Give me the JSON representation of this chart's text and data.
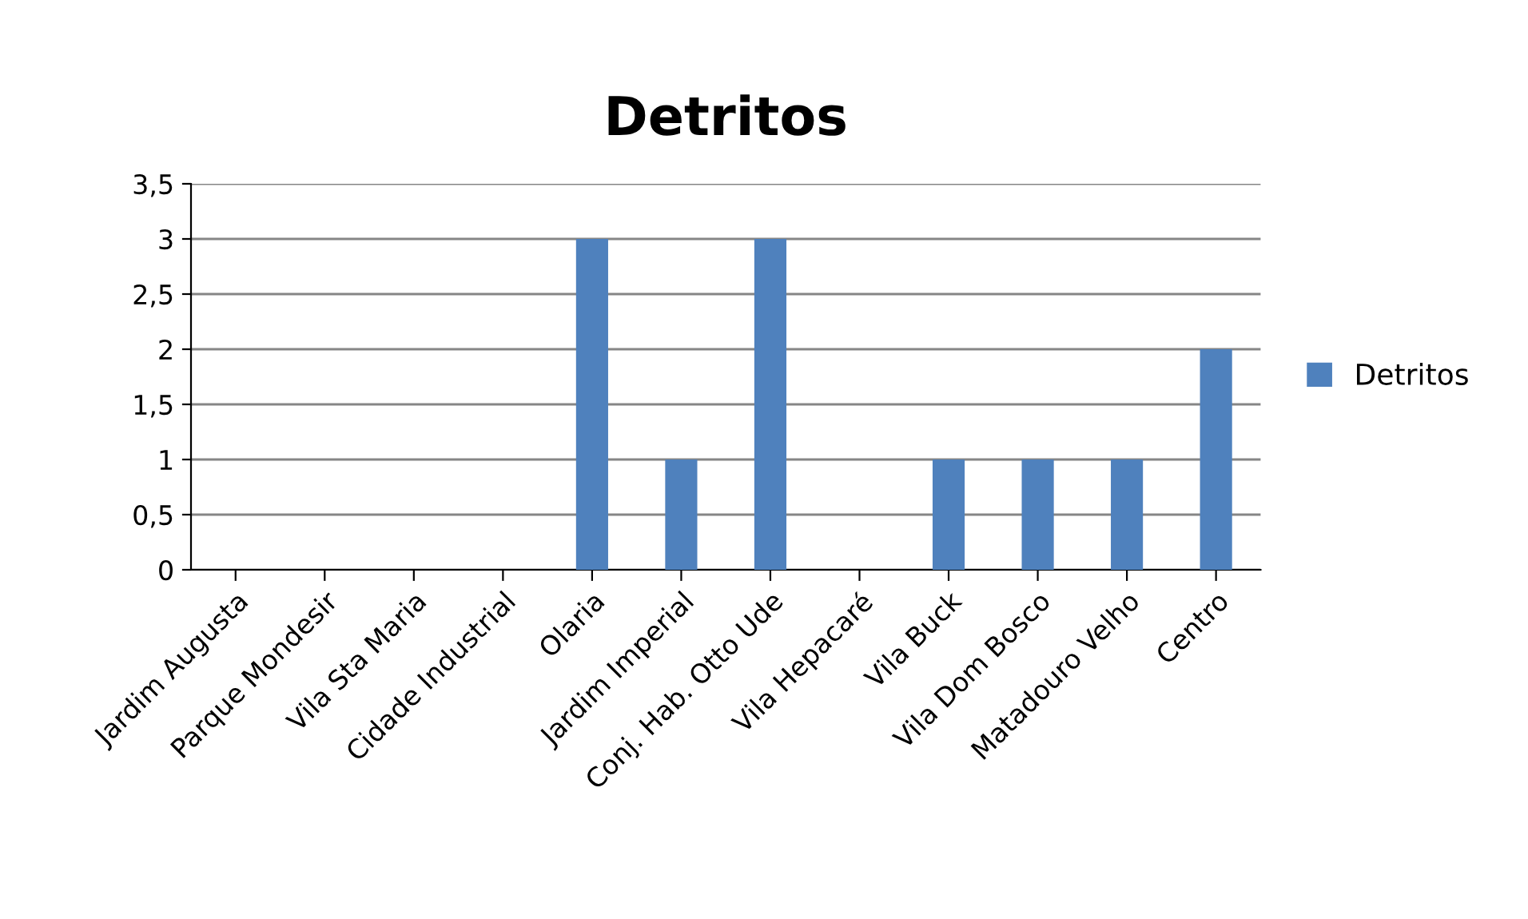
{
  "chart_data": {
    "type": "bar",
    "title": "Detritos",
    "categories": [
      "Jardim Augusta",
      "Parque Mondesir",
      "Vila Sta Maria",
      "Cidade Industrial",
      "Olaria",
      "Jardim Imperial",
      "Conj. Hab. Otto Ude",
      "Vila Hepacaré",
      "Vila Buck",
      "Vila Dom Bosco",
      "Matadouro Velho",
      "Centro"
    ],
    "series": [
      {
        "name": "Detritos",
        "color": "#4f81bd",
        "values": [
          0,
          0,
          0,
          0,
          3,
          1,
          3,
          0,
          1,
          1,
          1,
          2
        ]
      }
    ],
    "ylim": [
      0,
      3.5
    ],
    "yticks": [
      0,
      {
        "value": 0.5,
        "label": "0,5"
      },
      1,
      {
        "value": 1.5,
        "label": "1,5"
      },
      2,
      {
        "value": 2.5,
        "label": "2,5"
      },
      3,
      {
        "value": 3.5,
        "label": "3,5"
      }
    ],
    "grid": "y",
    "legend": "right"
  }
}
